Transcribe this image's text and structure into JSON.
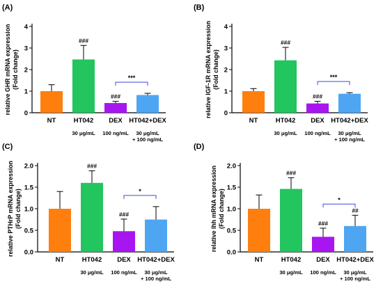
{
  "colors": {
    "NT": "#ff7f0e",
    "HT042": "#22c55e",
    "DEX": "#a716f0",
    "HT042+DEX": "#4ea6f2",
    "bracket": "#3a4bd8"
  },
  "chart_data": [
    {
      "type": "bar",
      "panel_label": "(A)",
      "ylabel": "relative GHR mRNA expression\n(Fold change)",
      "categories": [
        "NT",
        "HT042",
        "DEX",
        "HT042+DEX"
      ],
      "doses": [
        "",
        "30 μg/mL",
        "100 ng/mL",
        "30 μg/mL\n+ 100 ng/mL"
      ],
      "values": [
        1.0,
        2.47,
        0.45,
        0.82
      ],
      "errors": [
        0.3,
        0.65,
        0.08,
        0.08
      ],
      "significance": [
        "",
        "###",
        "###",
        ""
      ],
      "bracket": {
        "from": "DEX",
        "to": "HT042+DEX",
        "label": "***"
      },
      "ylim": [
        0,
        4
      ],
      "yticks": [
        "0",
        "1",
        "2",
        "3",
        "4"
      ]
    },
    {
      "type": "bar",
      "panel_label": "(B)",
      "ylabel": "relative IGF-1R mRNA expression\n(Fold change)",
      "categories": [
        "NT",
        "HT042",
        "DEX",
        "HT042+DEX"
      ],
      "doses": [
        "",
        "30 μg/mL",
        "100 ng/mL",
        "30 μg/mL\n+ 100 ng/mL"
      ],
      "values": [
        1.0,
        2.43,
        0.43,
        0.88
      ],
      "errors": [
        0.12,
        0.6,
        0.1,
        0.05
      ],
      "significance": [
        "",
        "###",
        "###",
        ""
      ],
      "bracket": {
        "from": "DEX",
        "to": "HT042+DEX",
        "label": "***"
      },
      "ylim": [
        0,
        4
      ],
      "yticks": [
        "0",
        "1",
        "2",
        "3",
        "4"
      ]
    },
    {
      "type": "bar",
      "panel_label": "(C)",
      "ylabel": "relative PTHrP mRNA expression\n(Fold change)",
      "categories": [
        "NT",
        "HT042",
        "DEX",
        "HT042+DEX"
      ],
      "doses": [
        "",
        "30 μg/mL",
        "100 ng/mL",
        "30 μg/mL\n+ 100 ng/mL"
      ],
      "values": [
        1.0,
        1.6,
        0.48,
        0.75
      ],
      "errors": [
        0.4,
        0.28,
        0.28,
        0.3
      ],
      "significance": [
        "",
        "###",
        "###",
        ""
      ],
      "bracket": {
        "from": "DEX",
        "to": "HT042+DEX",
        "label": "*"
      },
      "ylim": [
        0,
        2.0
      ],
      "yticks": [
        "0.0",
        "0.5",
        "1.0",
        "1.5",
        "2.0"
      ]
    },
    {
      "type": "bar",
      "panel_label": "(D)",
      "ylabel": "relative Ihh mRNA expression\n(Fold change)",
      "categories": [
        "NT",
        "HT042",
        "DEX",
        "HT042+DEX"
      ],
      "doses": [
        "",
        "30 μg/mL",
        "100 ng/mL",
        "30 μg/mL\n+ 100 ng/mL"
      ],
      "values": [
        1.0,
        1.46,
        0.35,
        0.6
      ],
      "errors": [
        0.32,
        0.26,
        0.2,
        0.25
      ],
      "significance": [
        "",
        "###",
        "###",
        "##"
      ],
      "bracket": {
        "from": "DEX",
        "to": "HT042+DEX",
        "label": "*"
      },
      "ylim": [
        0,
        2.0
      ],
      "yticks": [
        "0.0",
        "0.5",
        "1.0",
        "1.5",
        "2.0"
      ]
    }
  ]
}
